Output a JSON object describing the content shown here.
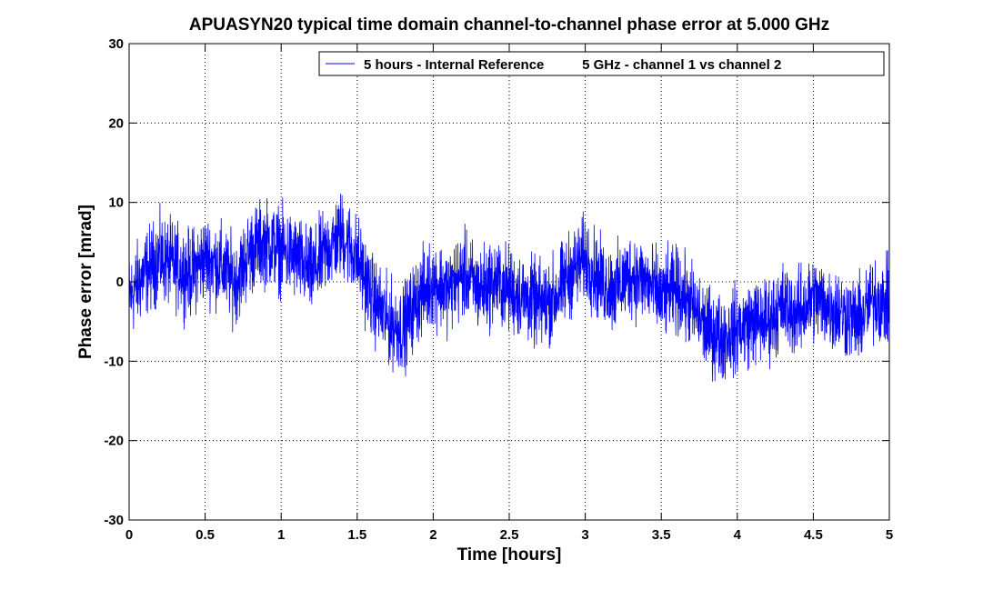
{
  "chart_data": {
    "type": "line",
    "title": "APUASYN20 typical time domain channel-to-channel phase error at 5.000 GHz",
    "xlabel": "Time [hours]",
    "ylabel": "Phase error [mrad]",
    "xlim": [
      0,
      5
    ],
    "ylim": [
      -30,
      30
    ],
    "xticks": [
      "0",
      "0.5",
      "1",
      "1.5",
      "2",
      "2.5",
      "3",
      "3.5",
      "4",
      "4.5",
      "5"
    ],
    "yticks": [
      "-30",
      "-20",
      "-10",
      "0",
      "10",
      "20",
      "30"
    ],
    "grid": true,
    "legend_position": "top-right",
    "series": [
      {
        "name": "5 hours - Internal Reference          5 GHz - channel 1 vs channel 2",
        "color": "#0000ff",
        "x": [
          0,
          0.1,
          0.2,
          0.3,
          0.4,
          0.5,
          0.6,
          0.7,
          0.8,
          0.9,
          1.0,
          1.1,
          1.2,
          1.3,
          1.4,
          1.5,
          1.6,
          1.7,
          1.8,
          1.9,
          2.0,
          2.1,
          2.2,
          2.3,
          2.4,
          2.5,
          2.6,
          2.7,
          2.8,
          2.9,
          3.0,
          3.1,
          3.2,
          3.3,
          3.4,
          3.5,
          3.6,
          3.7,
          3.8,
          3.9,
          4.0,
          4.1,
          4.2,
          4.3,
          4.4,
          4.5,
          4.6,
          4.7,
          4.8,
          4.9,
          5.0
        ],
        "values": [
          -2,
          1,
          3,
          2,
          1,
          3,
          2,
          0,
          4,
          5,
          4,
          3,
          1,
          4,
          6,
          3,
          -2,
          -5,
          -6,
          -2,
          0,
          -1,
          1,
          -1,
          0,
          -1,
          -2,
          -3,
          -2,
          1,
          3,
          0,
          -1,
          1,
          0,
          -2,
          -1,
          -3,
          -6,
          -7,
          -6,
          -5,
          -5,
          -3,
          -4,
          -2,
          -3,
          -4,
          -5,
          -2,
          -3
        ],
        "peak_to_peak_range": [
          -15,
          15
        ]
      }
    ]
  }
}
